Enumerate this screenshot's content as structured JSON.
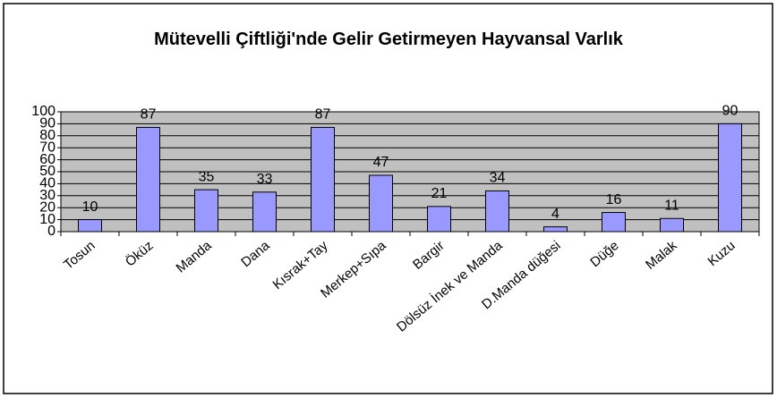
{
  "chart_data": {
    "type": "bar",
    "title": "Mütevelli Çiftliği'nde Gelir Getirmeyen Hayvansal Varlık",
    "categories": [
      "Tosun",
      "Öküz",
      "Manda",
      "Dana",
      "Kısrak+Tay",
      "Merkep+Sıpa",
      "Bargir",
      "Dölsüz İnek ve Manda",
      "D.Manda düğesi",
      "Düğe",
      "Malak",
      "Kuzu"
    ],
    "values": [
      10,
      87,
      35,
      33,
      87,
      47,
      21,
      34,
      4,
      16,
      11,
      90
    ],
    "color": "#9999ff",
    "ylim": [
      0,
      100
    ],
    "yticks": [
      0,
      10,
      20,
      30,
      40,
      50,
      60,
      70,
      80,
      90,
      100
    ],
    "grid": true
  }
}
